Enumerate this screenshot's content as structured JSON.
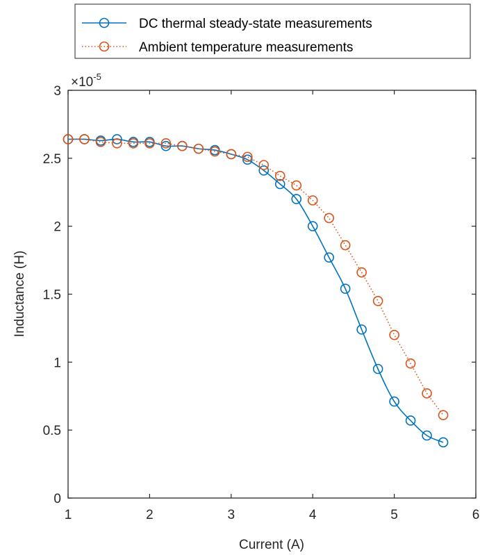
{
  "chart_data": {
    "type": "line",
    "xlabel": "Current (A)",
    "ylabel": "Inductance (H)",
    "xlim": [
      1,
      6
    ],
    "ylim": [
      0,
      3
    ],
    "y_exponent_base": "×10",
    "y_exponent_power": "-5",
    "x_ticks": [
      "1",
      "2",
      "3",
      "4",
      "5",
      "6"
    ],
    "y_ticks": [
      "0",
      "0.5",
      "1",
      "1.5",
      "2",
      "2.5",
      "3"
    ],
    "grid": false,
    "legend_position": "top-right outside",
    "series": [
      {
        "name": "DC thermal steady-state measurements",
        "color": "#0072BD",
        "line_style": "solid",
        "marker": "circle",
        "x": [
          1.0,
          1.2,
          1.4,
          1.6,
          1.8,
          2.0,
          2.2,
          2.4,
          2.6,
          2.8,
          3.0,
          3.2,
          3.4,
          3.6,
          3.8,
          4.0,
          4.2,
          4.4,
          4.6,
          4.8,
          5.0,
          5.2,
          5.4,
          5.6
        ],
        "y": [
          2.64,
          2.64,
          2.63,
          2.64,
          2.62,
          2.62,
          2.59,
          2.59,
          2.57,
          2.56,
          2.53,
          2.49,
          2.41,
          2.31,
          2.2,
          2.0,
          1.77,
          1.54,
          1.24,
          0.95,
          0.71,
          0.57,
          0.46,
          0.41
        ]
      },
      {
        "name": "Ambient temperature measurements",
        "color": "#D95319",
        "line_style": "dotted",
        "marker": "circle",
        "x": [
          1.0,
          1.2,
          1.4,
          1.6,
          1.8,
          2.0,
          2.2,
          2.4,
          2.6,
          2.8,
          3.0,
          3.2,
          3.4,
          3.6,
          3.8,
          4.0,
          4.2,
          4.4,
          4.6,
          4.8,
          5.0,
          5.2,
          5.4,
          5.6
        ],
        "y": [
          2.64,
          2.64,
          2.62,
          2.61,
          2.61,
          2.61,
          2.61,
          2.59,
          2.57,
          2.55,
          2.53,
          2.51,
          2.45,
          2.37,
          2.3,
          2.19,
          2.06,
          1.86,
          1.66,
          1.45,
          1.2,
          0.99,
          0.77,
          0.61
        ]
      }
    ]
  }
}
